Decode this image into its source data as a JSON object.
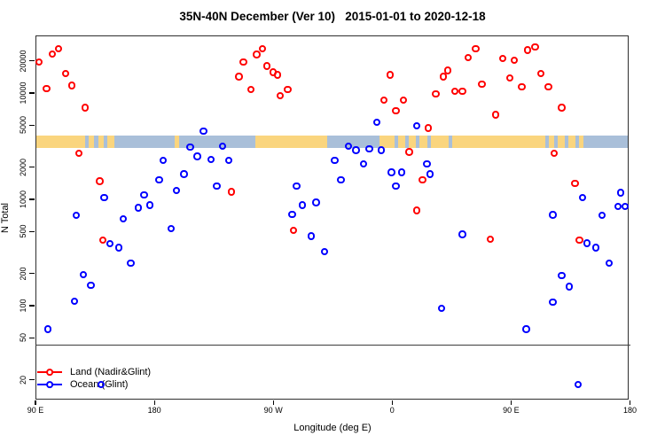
{
  "title": "35N-40N December (Ver 10)   2015-01-01 to 2020-12-18",
  "chart_data": {
    "type": "scatter",
    "title": "35N-40N December (Ver 10)   2015-01-01 to 2020-12-18",
    "xlabel": "Longitude (deg E)",
    "ylabel": "N Total",
    "grid": false,
    "x_axis": {
      "range": [
        90,
        540
      ],
      "ticks": [
        {
          "pos": 90,
          "label": "90 E"
        },
        {
          "pos": 180,
          "label": "180"
        },
        {
          "pos": 270,
          "label": "90 W"
        },
        {
          "pos": 360,
          "label": "0"
        },
        {
          "pos": 450,
          "label": "90 E"
        },
        {
          "pos": 540,
          "label": "180"
        }
      ]
    },
    "y_axis": {
      "scale": "log",
      "range": [
        13,
        34800
      ],
      "ticks": [
        {
          "pos": 20,
          "label": "20"
        },
        {
          "pos": 50,
          "label": "50"
        },
        {
          "pos": 100,
          "label": "100"
        },
        {
          "pos": 200,
          "label": "200"
        },
        {
          "pos": 500,
          "label": "500"
        },
        {
          "pos": 1000,
          "label": "1000"
        },
        {
          "pos": 2000,
          "label": "2000"
        },
        {
          "pos": 5000,
          "label": "5000"
        },
        {
          "pos": 10000,
          "label": "10000"
        },
        {
          "pos": 20000,
          "label": "20000"
        }
      ]
    },
    "legend_position": "bottom-left-inside",
    "legend": [
      {
        "label": "Land (Nadir&Glint)",
        "color": "#FF0000"
      },
      {
        "label": "Ocean (Glint)",
        "color": "#0000FF"
      }
    ],
    "separator_line_y_value": 43,
    "map_strip": {
      "description": "land/ocean map band for 35N-40N latitude strip",
      "value_top": 4050,
      "value_bottom": 3100,
      "land_color": "#FAD57E",
      "ocean_color": "#A9BFD9",
      "segments": [
        {
          "from": 90,
          "to": 128,
          "type": "land"
        },
        {
          "from": 128,
          "to": 131,
          "type": "ocean"
        },
        {
          "from": 131,
          "to": 135,
          "type": "land"
        },
        {
          "from": 135,
          "to": 138,
          "type": "ocean"
        },
        {
          "from": 138,
          "to": 142,
          "type": "land"
        },
        {
          "from": 142,
          "to": 145,
          "type": "ocean"
        },
        {
          "from": 145,
          "to": 150,
          "type": "land"
        },
        {
          "from": 150,
          "to": 196,
          "type": "ocean"
        },
        {
          "from": 196,
          "to": 199,
          "type": "land"
        },
        {
          "from": 199,
          "to": 257,
          "type": "ocean"
        },
        {
          "from": 257,
          "to": 311,
          "type": "land"
        },
        {
          "from": 311,
          "to": 351,
          "type": "ocean"
        },
        {
          "from": 351,
          "to": 362,
          "type": "land"
        },
        {
          "from": 362,
          "to": 365,
          "type": "ocean"
        },
        {
          "from": 365,
          "to": 370,
          "type": "land"
        },
        {
          "from": 370,
          "to": 373,
          "type": "ocean"
        },
        {
          "from": 373,
          "to": 378,
          "type": "land"
        },
        {
          "from": 378,
          "to": 381,
          "type": "ocean"
        },
        {
          "from": 381,
          "to": 387,
          "type": "land"
        },
        {
          "from": 387,
          "to": 390,
          "type": "ocean"
        },
        {
          "from": 390,
          "to": 403,
          "type": "land"
        },
        {
          "from": 403,
          "to": 406,
          "type": "ocean"
        },
        {
          "from": 406,
          "to": 476,
          "type": "land"
        },
        {
          "from": 476,
          "to": 479,
          "type": "ocean"
        },
        {
          "from": 479,
          "to": 483,
          "type": "land"
        },
        {
          "from": 483,
          "to": 486,
          "type": "ocean"
        },
        {
          "from": 486,
          "to": 491,
          "type": "land"
        },
        {
          "from": 491,
          "to": 494,
          "type": "ocean"
        },
        {
          "from": 494,
          "to": 499,
          "type": "land"
        },
        {
          "from": 499,
          "to": 502,
          "type": "ocean"
        },
        {
          "from": 502,
          "to": 505,
          "type": "land"
        },
        {
          "from": 505,
          "to": 540,
          "type": "ocean"
        }
      ]
    },
    "series": [
      {
        "name": "Land (Nadir&Glint)",
        "color": "#FF0000",
        "points": [
          [
            93,
            19500
          ],
          [
            98.5,
            11000
          ],
          [
            103,
            23000
          ],
          [
            107.5,
            26000
          ],
          [
            113,
            15200
          ],
          [
            117.6,
            11700
          ],
          [
            127.6,
            7270
          ],
          [
            123,
            2700
          ],
          [
            138.9,
            1470
          ],
          [
            141.1,
            410
          ],
          [
            238.6,
            1170
          ],
          [
            244.2,
            14200
          ],
          [
            247.6,
            19500
          ],
          [
            253.2,
            10700
          ],
          [
            257.6,
            22900
          ],
          [
            262.1,
            26000
          ],
          [
            265.5,
            17800
          ],
          [
            270,
            15600
          ],
          [
            273.4,
            14700
          ],
          [
            275.6,
            9400
          ],
          [
            281.2,
            10700
          ],
          [
            285.7,
            510
          ],
          [
            354,
            8560
          ],
          [
            358.5,
            14700
          ],
          [
            363,
            6800
          ],
          [
            368.6,
            8560
          ],
          [
            373,
            2780
          ],
          [
            378.7,
            780
          ],
          [
            383.2,
            1520
          ],
          [
            387.6,
            4670
          ],
          [
            393.2,
            9700
          ],
          [
            398.8,
            14200
          ],
          [
            402.2,
            16200
          ],
          [
            407.8,
            10300
          ],
          [
            413.4,
            10300
          ],
          [
            417.9,
            21500
          ],
          [
            423.5,
            26100
          ],
          [
            428,
            12100
          ],
          [
            434.7,
            420
          ],
          [
            438.7,
            6200
          ],
          [
            443.7,
            20900
          ],
          [
            449.2,
            13800
          ],
          [
            452.6,
            20300
          ],
          [
            458.2,
            11400
          ],
          [
            462.7,
            25200
          ],
          [
            468.3,
            26900
          ],
          [
            472.8,
            15200
          ],
          [
            478.4,
            11400
          ],
          [
            482.9,
            2700
          ],
          [
            488.5,
            7270
          ],
          [
            498.6,
            1410
          ],
          [
            502,
            410
          ]
        ]
      },
      {
        "name": "Ocean (Glint)",
        "color": "#0000FF",
        "points": [
          [
            99.6,
            60
          ],
          [
            119.8,
            110
          ],
          [
            120.9,
            700
          ],
          [
            126.5,
            195
          ],
          [
            132.2,
            155
          ],
          [
            139.8,
            18
          ],
          [
            142.2,
            1030
          ],
          [
            146.7,
            380
          ],
          [
            153.4,
            350
          ],
          [
            156.8,
            650
          ],
          [
            162.4,
            250
          ],
          [
            168,
            830
          ],
          [
            172.5,
            1100
          ],
          [
            176.9,
            880
          ],
          [
            183.7,
            1520
          ],
          [
            187,
            2300
          ],
          [
            192.7,
            530
          ],
          [
            197.1,
            1210
          ],
          [
            202.7,
            1720
          ],
          [
            207.2,
            3070
          ],
          [
            212.8,
            2520
          ],
          [
            217.3,
            4350
          ],
          [
            222.9,
            2370
          ],
          [
            227.4,
            1330
          ],
          [
            231.9,
            3160
          ],
          [
            236.4,
            2300
          ],
          [
            284.5,
            720
          ],
          [
            287.9,
            1330
          ],
          [
            292.4,
            880
          ],
          [
            299.1,
            450
          ],
          [
            302.5,
            930
          ],
          [
            309.2,
            320
          ],
          [
            316.8,
            2300
          ],
          [
            321.4,
            1520
          ],
          [
            327.2,
            3160
          ],
          [
            332.8,
            2880
          ],
          [
            338.4,
            2140
          ],
          [
            342.9,
            2960
          ],
          [
            348.5,
            5250
          ],
          [
            351.9,
            2880
          ],
          [
            359.6,
            1780
          ],
          [
            363,
            1330
          ],
          [
            367.5,
            1780
          ],
          [
            378.7,
            4900
          ],
          [
            386.4,
            2140
          ],
          [
            388.7,
            1720
          ],
          [
            397.7,
            94
          ],
          [
            413.4,
            465
          ],
          [
            461.6,
            60
          ],
          [
            481.8,
            710
          ],
          [
            481.8,
            107
          ],
          [
            488.5,
            190
          ],
          [
            494.1,
            150
          ],
          [
            500.9,
            18
          ],
          [
            504.2,
            1030
          ],
          [
            507.6,
            385
          ],
          [
            514.3,
            350
          ],
          [
            519,
            700
          ],
          [
            524.3,
            250
          ],
          [
            531.1,
            850
          ],
          [
            533.3,
            1150
          ],
          [
            536.7,
            850
          ]
        ]
      }
    ]
  }
}
